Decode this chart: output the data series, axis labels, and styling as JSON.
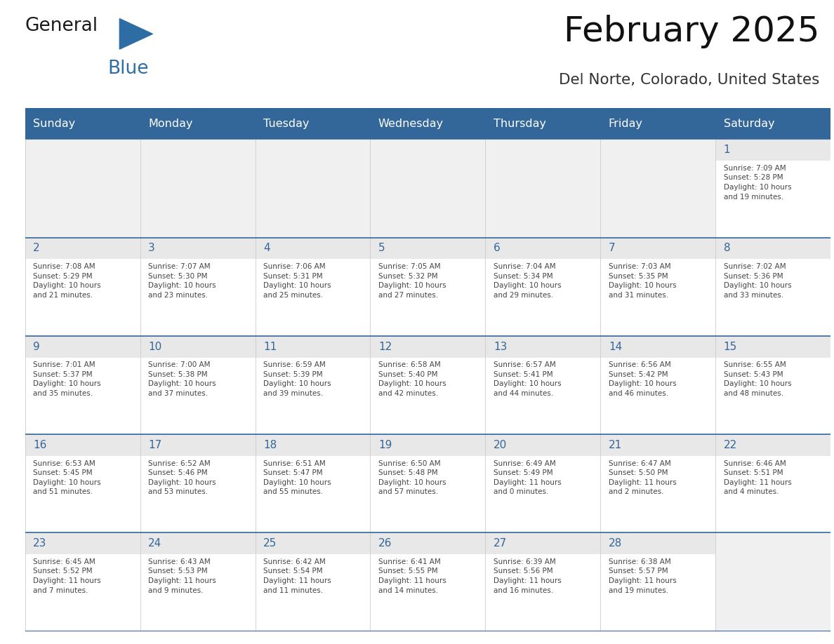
{
  "title": "February 2025",
  "subtitle": "Del Norte, Colorado, United States",
  "header_color": "#336699",
  "header_text_color": "#ffffff",
  "cell_bg_color": "#ffffff",
  "day_strip_color": "#e8e8e8",
  "day_number_color": "#336699",
  "text_color": "#444444",
  "days_of_week": [
    "Sunday",
    "Monday",
    "Tuesday",
    "Wednesday",
    "Thursday",
    "Friday",
    "Saturday"
  ],
  "weeks": [
    [
      {
        "day": null,
        "info": null
      },
      {
        "day": null,
        "info": null
      },
      {
        "day": null,
        "info": null
      },
      {
        "day": null,
        "info": null
      },
      {
        "day": null,
        "info": null
      },
      {
        "day": null,
        "info": null
      },
      {
        "day": 1,
        "info": "Sunrise: 7:09 AM\nSunset: 5:28 PM\nDaylight: 10 hours\nand 19 minutes."
      }
    ],
    [
      {
        "day": 2,
        "info": "Sunrise: 7:08 AM\nSunset: 5:29 PM\nDaylight: 10 hours\nand 21 minutes."
      },
      {
        "day": 3,
        "info": "Sunrise: 7:07 AM\nSunset: 5:30 PM\nDaylight: 10 hours\nand 23 minutes."
      },
      {
        "day": 4,
        "info": "Sunrise: 7:06 AM\nSunset: 5:31 PM\nDaylight: 10 hours\nand 25 minutes."
      },
      {
        "day": 5,
        "info": "Sunrise: 7:05 AM\nSunset: 5:32 PM\nDaylight: 10 hours\nand 27 minutes."
      },
      {
        "day": 6,
        "info": "Sunrise: 7:04 AM\nSunset: 5:34 PM\nDaylight: 10 hours\nand 29 minutes."
      },
      {
        "day": 7,
        "info": "Sunrise: 7:03 AM\nSunset: 5:35 PM\nDaylight: 10 hours\nand 31 minutes."
      },
      {
        "day": 8,
        "info": "Sunrise: 7:02 AM\nSunset: 5:36 PM\nDaylight: 10 hours\nand 33 minutes."
      }
    ],
    [
      {
        "day": 9,
        "info": "Sunrise: 7:01 AM\nSunset: 5:37 PM\nDaylight: 10 hours\nand 35 minutes."
      },
      {
        "day": 10,
        "info": "Sunrise: 7:00 AM\nSunset: 5:38 PM\nDaylight: 10 hours\nand 37 minutes."
      },
      {
        "day": 11,
        "info": "Sunrise: 6:59 AM\nSunset: 5:39 PM\nDaylight: 10 hours\nand 39 minutes."
      },
      {
        "day": 12,
        "info": "Sunrise: 6:58 AM\nSunset: 5:40 PM\nDaylight: 10 hours\nand 42 minutes."
      },
      {
        "day": 13,
        "info": "Sunrise: 6:57 AM\nSunset: 5:41 PM\nDaylight: 10 hours\nand 44 minutes."
      },
      {
        "day": 14,
        "info": "Sunrise: 6:56 AM\nSunset: 5:42 PM\nDaylight: 10 hours\nand 46 minutes."
      },
      {
        "day": 15,
        "info": "Sunrise: 6:55 AM\nSunset: 5:43 PM\nDaylight: 10 hours\nand 48 minutes."
      }
    ],
    [
      {
        "day": 16,
        "info": "Sunrise: 6:53 AM\nSunset: 5:45 PM\nDaylight: 10 hours\nand 51 minutes."
      },
      {
        "day": 17,
        "info": "Sunrise: 6:52 AM\nSunset: 5:46 PM\nDaylight: 10 hours\nand 53 minutes."
      },
      {
        "day": 18,
        "info": "Sunrise: 6:51 AM\nSunset: 5:47 PM\nDaylight: 10 hours\nand 55 minutes."
      },
      {
        "day": 19,
        "info": "Sunrise: 6:50 AM\nSunset: 5:48 PM\nDaylight: 10 hours\nand 57 minutes."
      },
      {
        "day": 20,
        "info": "Sunrise: 6:49 AM\nSunset: 5:49 PM\nDaylight: 11 hours\nand 0 minutes."
      },
      {
        "day": 21,
        "info": "Sunrise: 6:47 AM\nSunset: 5:50 PM\nDaylight: 11 hours\nand 2 minutes."
      },
      {
        "day": 22,
        "info": "Sunrise: 6:46 AM\nSunset: 5:51 PM\nDaylight: 11 hours\nand 4 minutes."
      }
    ],
    [
      {
        "day": 23,
        "info": "Sunrise: 6:45 AM\nSunset: 5:52 PM\nDaylight: 11 hours\nand 7 minutes."
      },
      {
        "day": 24,
        "info": "Sunrise: 6:43 AM\nSunset: 5:53 PM\nDaylight: 11 hours\nand 9 minutes."
      },
      {
        "day": 25,
        "info": "Sunrise: 6:42 AM\nSunset: 5:54 PM\nDaylight: 11 hours\nand 11 minutes."
      },
      {
        "day": 26,
        "info": "Sunrise: 6:41 AM\nSunset: 5:55 PM\nDaylight: 11 hours\nand 14 minutes."
      },
      {
        "day": 27,
        "info": "Sunrise: 6:39 AM\nSunset: 5:56 PM\nDaylight: 11 hours\nand 16 minutes."
      },
      {
        "day": 28,
        "info": "Sunrise: 6:38 AM\nSunset: 5:57 PM\nDaylight: 11 hours\nand 19 minutes."
      },
      {
        "day": null,
        "info": null
      }
    ]
  ],
  "logo_general_color": "#1a1a1a",
  "logo_blue_color": "#2e6da4",
  "border_color": "#336699",
  "week_divider_color": "#336699",
  "figsize": [
    11.88,
    9.18
  ],
  "dpi": 100
}
